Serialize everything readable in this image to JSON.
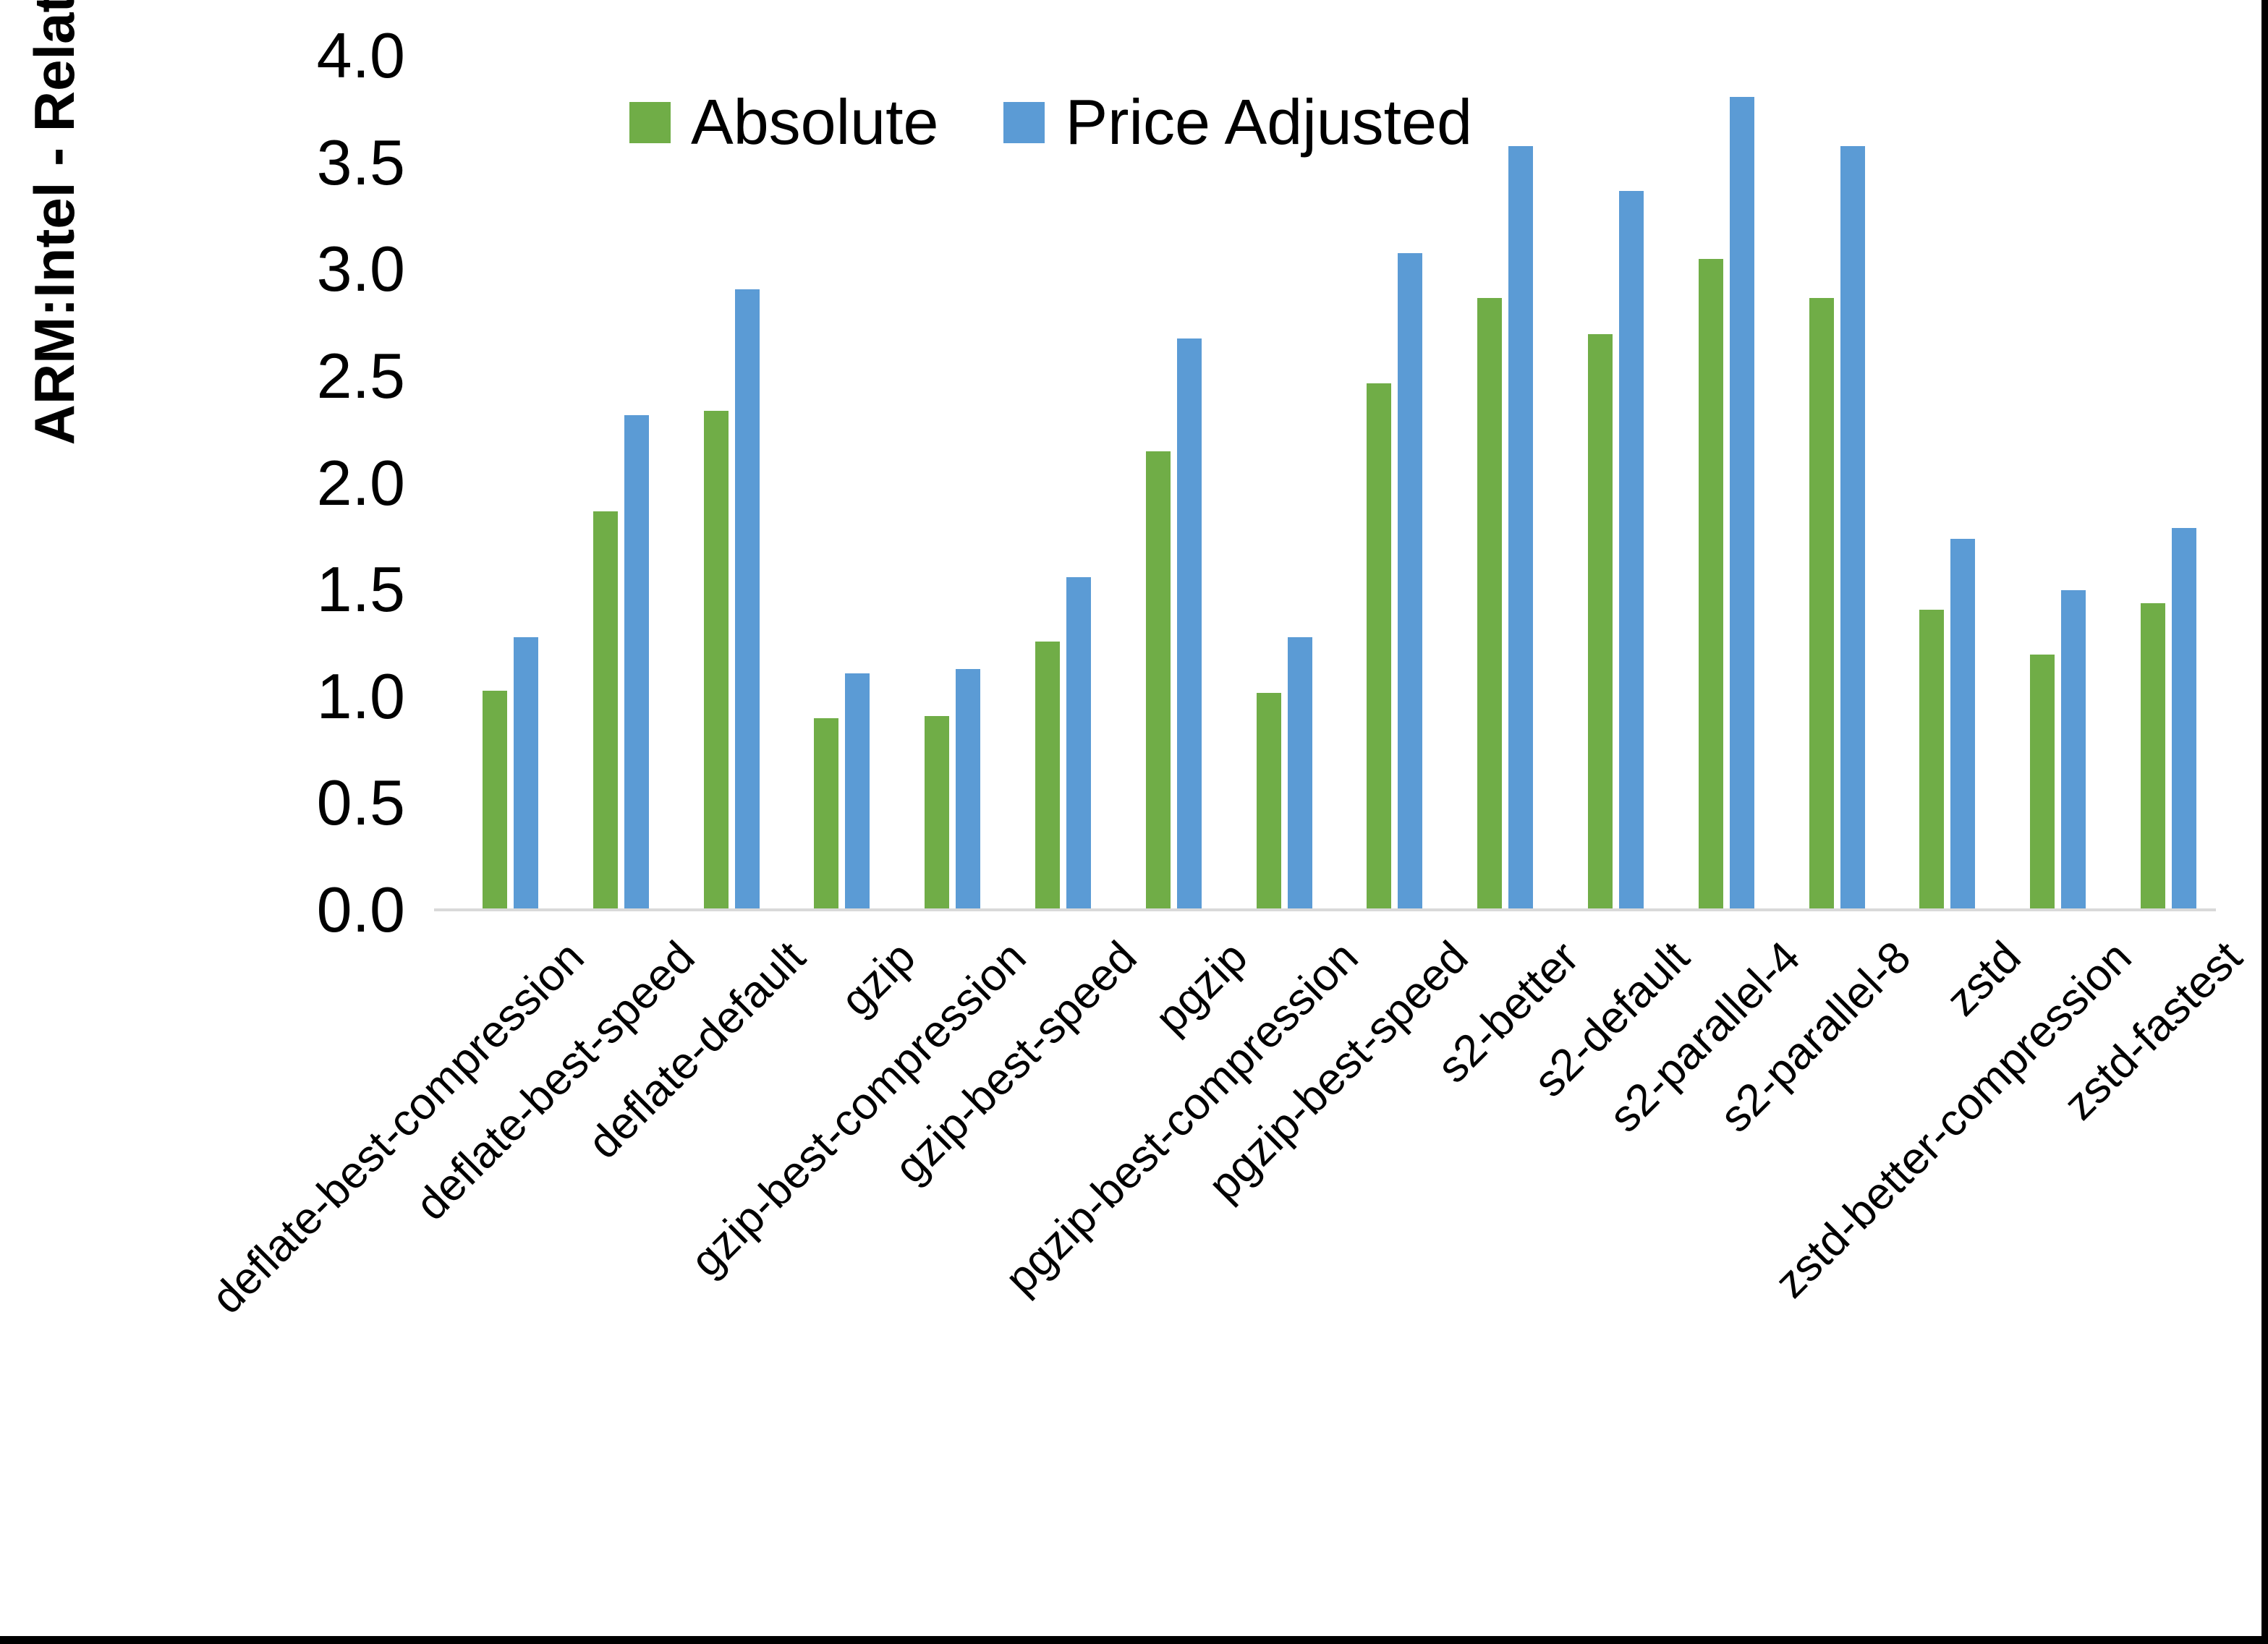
{
  "figure": {
    "background": "#ffffff",
    "edge_color": "#000000",
    "baseline_color": "#d9d9d9"
  },
  "chart_data": {
    "type": "bar",
    "title": "",
    "xlabel": "",
    "ylabel": "ARM:Intel - Relative Performance",
    "ylim": [
      0.0,
      4.0
    ],
    "ytick_step": 0.5,
    "yticks": [
      "4.0",
      "3.5",
      "3.0",
      "2.5",
      "2.0",
      "1.5",
      "1.0",
      "0.5",
      "0.0"
    ],
    "grid": false,
    "legend_position": "top-center",
    "categories": [
      "deflate-best-compression",
      "deflate-best-speed",
      "deflate-default",
      "gzip",
      "gzip-best-compression",
      "gzip-best-speed",
      "pgzip",
      "pgzip-best-compression",
      "pgzip-best-speed",
      "s2-better",
      "s2-default",
      "s2-parallel-4",
      "s2-parallel-8",
      "zstd",
      "zstd-better-compression",
      "zstd-fastest"
    ],
    "series": [
      {
        "name": "Absolute",
        "color": "#70AD47",
        "values": [
          1.02,
          1.86,
          2.33,
          0.89,
          0.9,
          1.25,
          2.14,
          1.01,
          2.46,
          2.86,
          2.69,
          3.04,
          2.86,
          1.4,
          1.19,
          1.43
        ]
      },
      {
        "name": "Price Adjusted",
        "color": "#5B9BD5",
        "values": [
          1.27,
          2.31,
          2.9,
          1.1,
          1.12,
          1.55,
          2.67,
          1.27,
          3.07,
          3.57,
          3.36,
          3.8,
          3.57,
          1.73,
          1.49,
          1.78
        ]
      }
    ]
  }
}
